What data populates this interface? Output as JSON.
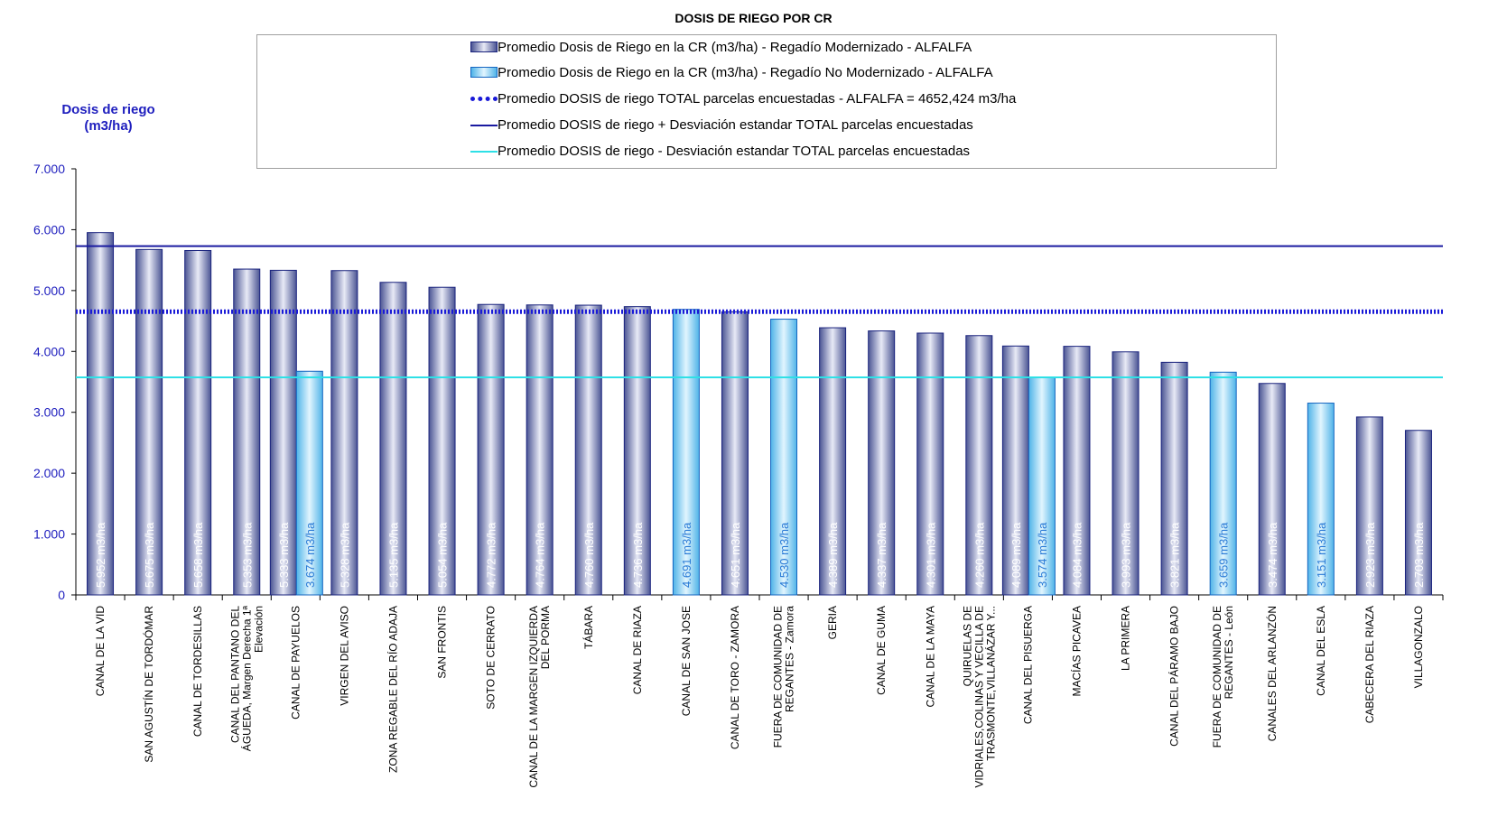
{
  "colors": {
    "modernizado_dark": "#4a5493",
    "modernizado_light": "#e8eaf6",
    "no_modernizado_dark": "#4fb3e8",
    "no_modernizado_light": "#e1f5fe",
    "media_line": "#1a1ad8",
    "mas_desv_line": "#1a1aa0",
    "menos_desv_line": "#2ee0e6",
    "axis_text": "#1e1ebe"
  },
  "chart_data": {
    "type": "bar",
    "title": "DOSIS DE RIEGO POR CR",
    "ylabel_line1": "Dosis de riego",
    "ylabel_line2": "(m3/ha)",
    "ylim": [
      0,
      7000
    ],
    "yticks": [
      0,
      1000,
      2000,
      3000,
      4000,
      5000,
      6000,
      7000
    ],
    "ytick_labels": [
      "0",
      "1.000",
      "2.000",
      "3.000",
      "4.000",
      "5.000",
      "6.000",
      "7.000"
    ],
    "grid": false,
    "legend_position": "top-center",
    "value_unit": " m3/ha",
    "categories": [
      [
        "CANAL DE LA VID"
      ],
      [
        "SAN AGUSTÍN DE TORDÓMAR"
      ],
      [
        "CANAL DE TORDESILLAS"
      ],
      [
        "CANAL DEL PANTANO DEL",
        "ÁGUEDA, Margen Derecha 1ª",
        "Elevación"
      ],
      [
        "CANAL DE PAYUELOS"
      ],
      [
        "VIRGEN DEL AVISO"
      ],
      [
        "ZONA REGABLE DEL RÍO ADAJA"
      ],
      [
        "SAN FRONTIS"
      ],
      [
        "SOTO DE CERRATO"
      ],
      [
        "CANAL DE LA MARGEN IZQUIERDA",
        "DEL PORMA"
      ],
      [
        "TÁBARA"
      ],
      [
        "CANAL DE RIAZA"
      ],
      [
        "CANAL DE SAN JOSE"
      ],
      [
        "CANAL DE TORO - ZAMORA"
      ],
      [
        "FUERA DE COMUNIDAD DE",
        "REGANTES - Zamora"
      ],
      [
        "GERIA"
      ],
      [
        "CANAL DE GUMA"
      ],
      [
        "CANAL DE LA MAYA"
      ],
      [
        "QUIRUELAS DE",
        "VIDRIALES,COLINAS Y VECILLA DE",
        "TRASMONTE,VILLANÁZAR Y..."
      ],
      [
        "CANAL DEL PISUERGA"
      ],
      [
        "MACÍAS PICAVEA"
      ],
      [
        "LA PRIMERA"
      ],
      [
        "CANAL DEL PÁRAMO BAJO"
      ],
      [
        "FUERA DE COMUNIDAD DE",
        "REGANTES - León"
      ],
      [
        "CANALES DEL ARLANZÓN"
      ],
      [
        "CANAL DEL ESLA"
      ],
      [
        "CABECERA DEL RIAZA"
      ],
      [
        "VILLAGONZALO"
      ]
    ],
    "series": [
      {
        "name": "Promedio Dosis de Riego en la CR (m3/ha) - Regadío Modernizado - ALFALFA",
        "values": [
          5952,
          5675,
          5658,
          5353,
          5333,
          5328,
          5135,
          5054,
          4772,
          4764,
          4760,
          4736,
          null,
          4651,
          null,
          4389,
          4337,
          4301,
          4260,
          4089,
          4084,
          3993,
          3821,
          null,
          3474,
          null,
          2923,
          2703
        ],
        "labels": [
          "5.952 m3/ha",
          "5.675 m3/ha",
          "5.658 m3/ha",
          "5.353 m3/ha",
          "5.333 m3/ha",
          "5.328 m3/ha",
          "5.135 m3/ha",
          "5.054 m3/ha",
          "4.772 m3/ha",
          "4.764 m3/ha",
          "4.760 m3/ha",
          "4.736 m3/ha",
          "",
          "4.651 m3/ha",
          "",
          "4.389 m3/ha",
          "4.337 m3/ha",
          "4.301 m3/ha",
          "4.260 m3/ha",
          "4.089 m3/ha",
          "4.084 m3/ha",
          "3.993 m3/ha",
          "3.821 m3/ha",
          "",
          "3.474 m3/ha",
          "",
          "2.923 m3/ha",
          "2.703 m3/ha"
        ]
      },
      {
        "name": "Promedio Dosis de Riego en la CR (m3/ha) - Regadío No Modernizado - ALFALFA",
        "values": [
          null,
          null,
          null,
          null,
          3674,
          null,
          null,
          null,
          null,
          null,
          null,
          null,
          4691,
          null,
          4530,
          null,
          null,
          null,
          null,
          3574,
          null,
          null,
          null,
          3659,
          null,
          3151,
          null,
          null
        ],
        "labels": [
          "",
          "",
          "",
          "",
          "3.674 m3/ha",
          "",
          "",
          "",
          "",
          "",
          "",
          "",
          "4.691 m3/ha",
          "",
          "4.530 m3/ha",
          "",
          "",
          "",
          "",
          "3.574 m3/ha",
          "",
          "",
          "",
          "3.659 m3/ha",
          "",
          "3.151 m3/ha",
          "",
          ""
        ]
      }
    ],
    "reference_lines": [
      {
        "name": "Promedio DOSIS de riego TOTAL parcelas encuestadas - ALFALFA = 4652,424 m3/ha",
        "value": 4652.424,
        "style": "dotted-thick"
      },
      {
        "name": "Promedio DOSIS de riego + Desviación estandar TOTAL parcelas encuestadas",
        "value": 5730,
        "style": "solid"
      },
      {
        "name": "Promedio DOSIS de riego - Desviación estandar TOTAL parcelas encuestadas",
        "value": 3575,
        "style": "solid"
      }
    ]
  }
}
